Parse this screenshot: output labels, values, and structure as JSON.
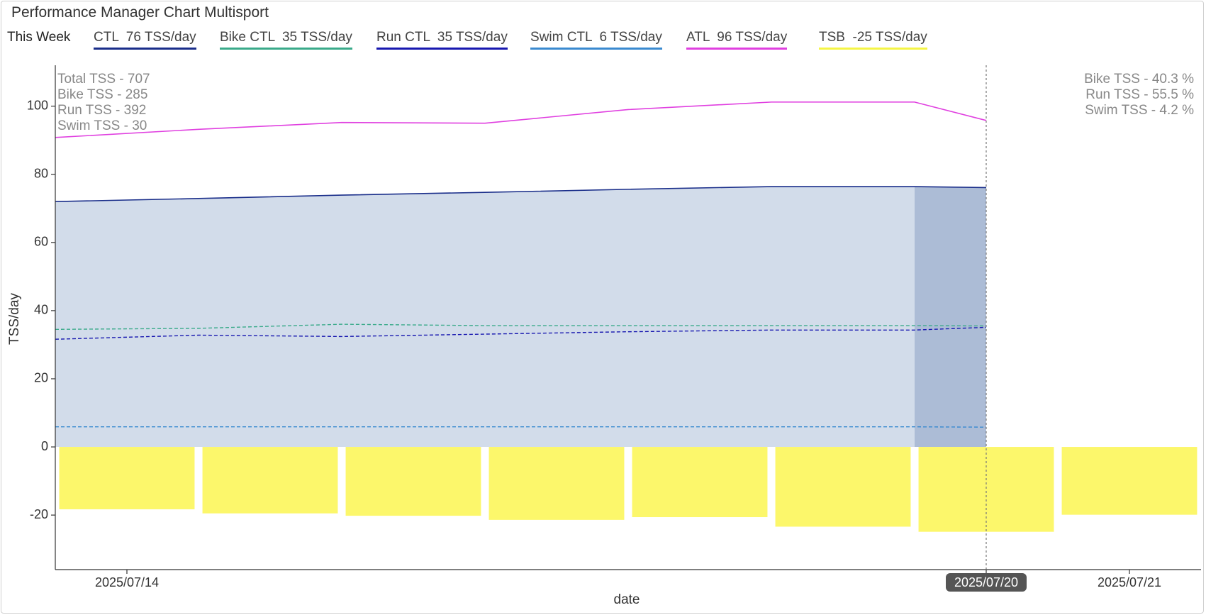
{
  "header": {
    "title": "Performance Manager Chart Multisport",
    "period_label": "This Week"
  },
  "legend": [
    {
      "label": "CTL  76 TSS/day",
      "color": "#1a2e8a"
    },
    {
      "label": "Bike CTL  35 TSS/day",
      "color": "#3aaa8a"
    },
    {
      "label": "Run CTL  35 TSS/day",
      "color": "#1818b0"
    },
    {
      "label": "Swim CTL  6 TSS/day",
      "color": "#3a8ad0"
    },
    {
      "label": "ATL  96 TSS/day",
      "color": "#e040e0"
    },
    {
      "label": "TSB  -25 TSS/day",
      "color": "#f5f545"
    }
  ],
  "annotations": {
    "left": [
      "Total TSS - 707",
      "Bike TSS - 285",
      "Run TSS - 392",
      "Swim TSS - 30"
    ],
    "right": [
      "Bike TSS - 40.3 %",
      "Run TSS - 55.5 %",
      "Swim TSS - 4.2 %"
    ]
  },
  "chart_data": {
    "type": "line",
    "title": "Performance Manager Chart Multisport",
    "xlabel": "date",
    "ylabel": "TSS/day",
    "ylim": [
      -36,
      112
    ],
    "yticks": [
      100,
      80,
      60,
      40,
      20,
      0,
      -20
    ],
    "xlim": [
      "2025-07-13 12:00",
      "2025-07-21 12:00"
    ],
    "x_tick_labels": [
      {
        "label": "2025/07/14",
        "date": "2025-07-14"
      },
      {
        "label": "2025/07/20",
        "date": "2025-07-20",
        "highlighted": true
      },
      {
        "label": "2025/07/21",
        "date": "2025-07-21"
      }
    ],
    "current_date": "2025-07-20",
    "x": [
      "2025-07-13 12:00",
      "2025-07-14 12:00",
      "2025-07-15 12:00",
      "2025-07-16 12:00",
      "2025-07-17 12:00",
      "2025-07-18 12:00",
      "2025-07-19 12:00",
      "2025-07-20 00:00"
    ],
    "series": [
      {
        "name": "CTL",
        "color": "#1a2e8a",
        "style": "solid",
        "area_fill": "#d2dcea",
        "values": [
          72,
          72.9,
          73.9,
          74.7,
          75.6,
          76.4,
          76.4,
          76.1
        ]
      },
      {
        "name": "ATL",
        "color": "#e040e0",
        "style": "solid",
        "values": [
          90.8,
          93.2,
          95.2,
          95,
          99,
          101.2,
          101.2,
          95.8
        ]
      },
      {
        "name": "Bike CTL",
        "color": "#3aaa8a",
        "style": "dashed",
        "values": [
          34.5,
          34.8,
          36,
          35.6,
          35.6,
          35.6,
          35.6,
          35.5
        ]
      },
      {
        "name": "Run CTL",
        "color": "#1818b0",
        "style": "dashed",
        "values": [
          31.6,
          32.8,
          32.4,
          33.1,
          33.8,
          34.3,
          34.3,
          35.1
        ]
      },
      {
        "name": "Swim CTL",
        "color": "#3a8ad0",
        "style": "dashed",
        "values": [
          5.9,
          5.9,
          5.9,
          5.9,
          5.9,
          5.9,
          5.9,
          5.8
        ]
      }
    ],
    "tsb_bars": {
      "name": "TSB",
      "color": "#fcf76b",
      "dates": [
        "2025-07-14",
        "2025-07-15",
        "2025-07-16",
        "2025-07-17",
        "2025-07-18",
        "2025-07-19",
        "2025-07-20",
        "2025-07-21"
      ],
      "values": [
        -18.3,
        -19.5,
        -20.2,
        -21.4,
        -20.6,
        -23.4,
        -24.9,
        -19.9
      ]
    },
    "highlight_band": {
      "from": "2025-07-19 12:00",
      "to": "2025-07-20 00:00",
      "color": "#acbcd6"
    }
  }
}
